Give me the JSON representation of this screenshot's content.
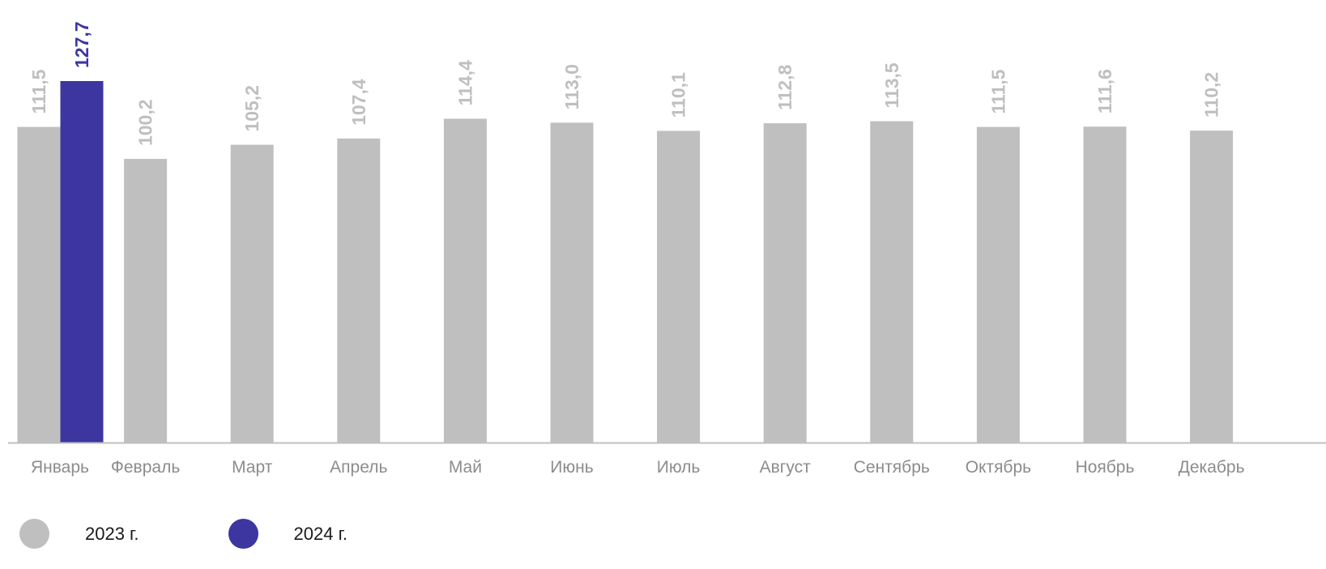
{
  "chart_data": {
    "type": "bar",
    "categories": [
      "Январь",
      "Февраль",
      "Март",
      "Апрель",
      "Май",
      "Июнь",
      "Июль",
      "Август",
      "Сентябрь",
      "Октябрь",
      "Ноябрь",
      "Декабрь"
    ],
    "series": [
      {
        "name": "2023 г.",
        "color": "#bfbfbf",
        "values": [
          111.5,
          100.2,
          105.2,
          107.4,
          114.4,
          113.0,
          110.1,
          112.8,
          113.5,
          111.5,
          111.6,
          110.2
        ],
        "labels": [
          "111,5",
          "100,2",
          "105,2",
          "107,4",
          "114,4",
          "113,0",
          "110,1",
          "112,8",
          "113,5",
          "111,5",
          "111,6",
          "110,2"
        ]
      },
      {
        "name": "2024 г.",
        "color": "#3d36a0",
        "values": [
          127.7,
          null,
          null,
          null,
          null,
          null,
          null,
          null,
          null,
          null,
          null,
          null
        ],
        "labels": [
          "127,7",
          null,
          null,
          null,
          null,
          null,
          null,
          null,
          null,
          null,
          null,
          null
        ]
      }
    ],
    "ylim": [
      0,
      127.7
    ],
    "grid": false,
    "legend": "bottom-left",
    "axis_color": "#bfbfbf"
  }
}
